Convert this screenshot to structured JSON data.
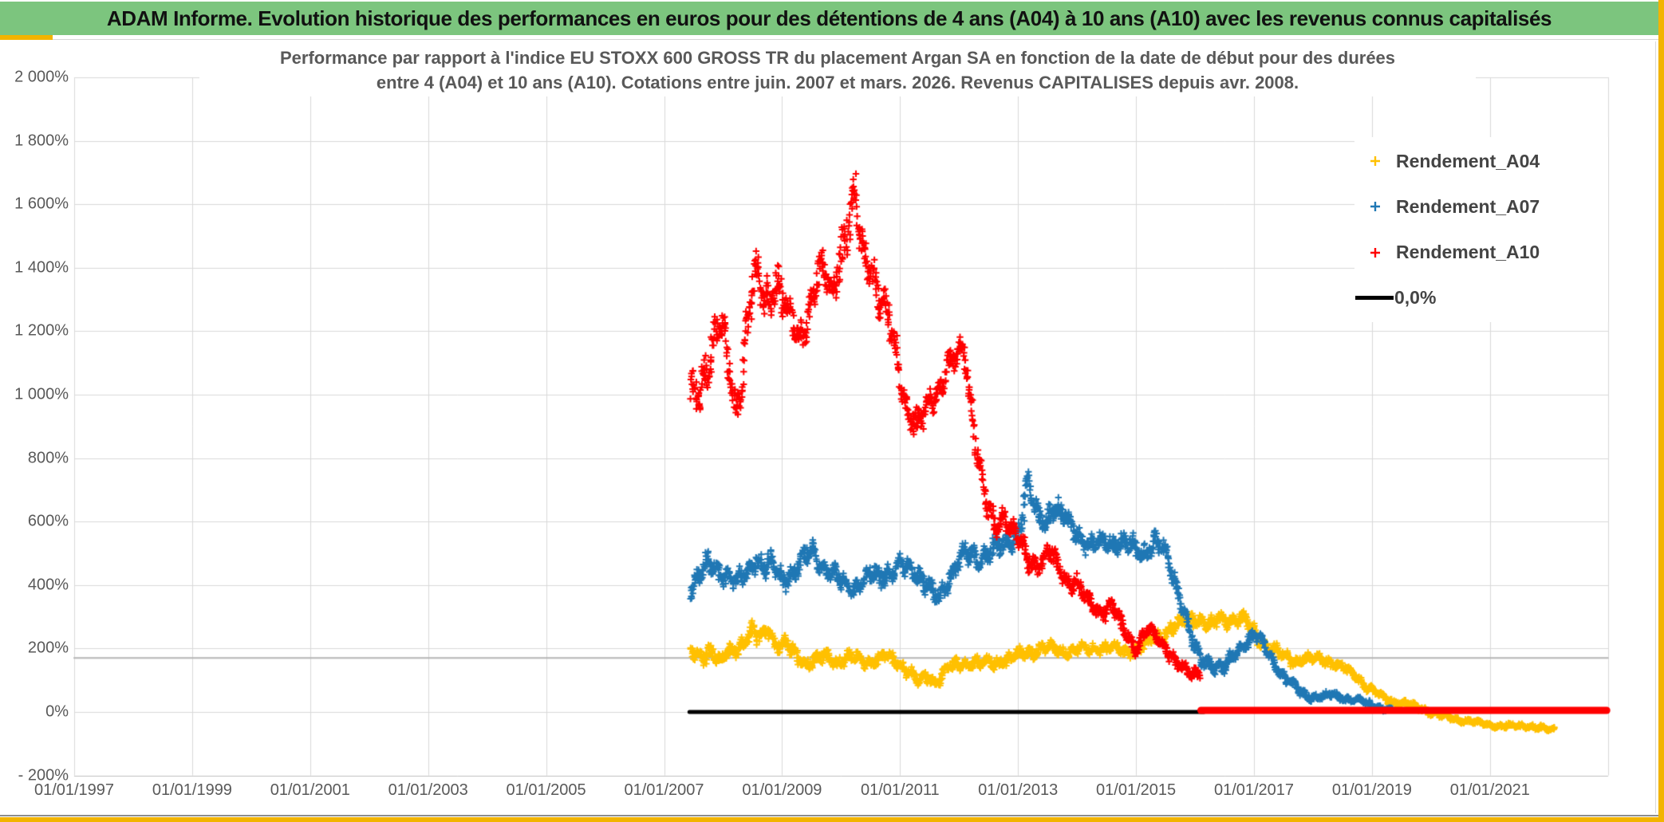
{
  "header": {
    "title": "ADAM Informe. Evolution historique des performances en euros pour des détentions de 4 ans (A04) à 10 ans (A10) avec les revenus connus capitalisés",
    "title_bg": "#7CC57E",
    "accent_gold": "#F2B400"
  },
  "chart_data": {
    "type": "scatter",
    "title_line1": "Performance par rapport à l'indice EU STOXX 600 GROSS TR  du placement Argan SA en fonction de la date de début pour des durées",
    "title_line2": "entre 4 (A04) et 10 ans (A10). Cotations entre juin. 2007 et mars. 2026. Revenus CAPITALISES depuis avr. 2008.",
    "grid": true,
    "legend_position": "right-top",
    "x_axis": {
      "tick_labels": [
        "01/01/1997",
        "01/01/1999",
        "01/01/2001",
        "01/01/2003",
        "01/01/2005",
        "01/01/2007",
        "01/01/2009",
        "01/01/2011",
        "01/01/2013",
        "01/01/2015",
        "01/01/2017",
        "01/01/2019",
        "01/01/2021"
      ],
      "tick_years": [
        1997,
        1999,
        2001,
        2003,
        2005,
        2007,
        2009,
        2011,
        2013,
        2015,
        2017,
        2019,
        2021
      ],
      "range_years": [
        1997,
        2023.0
      ]
    },
    "y_axis": {
      "tick_labels": [
        "2 000%",
        "1 800%",
        "1 600%",
        "1 400%",
        "1 200%",
        "1 000%",
        "800%",
        "600%",
        "400%",
        "200%",
        "0%",
        "- 200%"
      ],
      "tick_values": [
        2000,
        1800,
        1600,
        1400,
        1200,
        1000,
        800,
        600,
        400,
        200,
        0,
        -200
      ],
      "min": -200,
      "max": 2000,
      "unit": "%"
    },
    "legend": [
      {
        "label": "Rendement_A04",
        "color": "#FFC000",
        "marker": "plus"
      },
      {
        "label": "Rendement_A07",
        "color": "#1F77B4",
        "marker": "plus"
      },
      {
        "label": "Rendement_A10",
        "color": "#FF0000",
        "marker": "plus"
      },
      {
        "label": "0,0%",
        "color": "#000000",
        "marker": "line"
      }
    ],
    "reference_lines": [
      {
        "name": "zero-black",
        "value": 0,
        "from_year": 2007.43,
        "to_year": 2016.15,
        "color": "#000000",
        "thickness": 5
      },
      {
        "name": "zero-red-flat",
        "value": 0,
        "from_year": 2016.1,
        "to_year": 2022.98,
        "color": "#FF0000",
        "thickness": 9
      },
      {
        "name": "gray-thin",
        "value": 170,
        "from_year": 1997,
        "to_year": 2023.0,
        "color": "#B5B5B5",
        "thickness": 2
      }
    ],
    "series": [
      {
        "name": "Rendement_A04",
        "color": "#FFC000",
        "marker": "plus",
        "anchors": [
          [
            2007.45,
            185,
            35
          ],
          [
            2007.6,
            178,
            30
          ],
          [
            2007.8,
            195,
            35
          ],
          [
            2007.95,
            150,
            32
          ],
          [
            2008.1,
            190,
            32
          ],
          [
            2008.3,
            215,
            35
          ],
          [
            2008.5,
            240,
            40
          ],
          [
            2008.65,
            235,
            40
          ],
          [
            2008.76,
            270,
            28
          ],
          [
            2008.9,
            210,
            32
          ],
          [
            2009.05,
            212,
            35
          ],
          [
            2009.25,
            178,
            30
          ],
          [
            2009.45,
            150,
            26
          ],
          [
            2009.6,
            168,
            26
          ],
          [
            2009.75,
            175,
            28
          ],
          [
            2009.95,
            158,
            26
          ],
          [
            2010.15,
            172,
            26
          ],
          [
            2010.35,
            165,
            26
          ],
          [
            2010.55,
            160,
            26
          ],
          [
            2010.75,
            172,
            26
          ],
          [
            2010.95,
            162,
            26
          ],
          [
            2011.15,
            130,
            28
          ],
          [
            2011.3,
            90,
            26
          ],
          [
            2011.45,
            112,
            26
          ],
          [
            2011.6,
            95,
            26
          ],
          [
            2011.8,
            135,
            26
          ],
          [
            2012.0,
            152,
            26
          ],
          [
            2012.2,
            158,
            26
          ],
          [
            2012.4,
            152,
            24
          ],
          [
            2012.6,
            155,
            24
          ],
          [
            2012.8,
            165,
            24
          ],
          [
            2013.0,
            178,
            26
          ],
          [
            2013.2,
            190,
            28
          ],
          [
            2013.4,
            200,
            28
          ],
          [
            2013.6,
            198,
            26
          ],
          [
            2013.8,
            188,
            24
          ],
          [
            2014.0,
            198,
            26
          ],
          [
            2014.2,
            196,
            24
          ],
          [
            2014.4,
            205,
            24
          ],
          [
            2014.6,
            200,
            24
          ],
          [
            2014.8,
            192,
            24
          ],
          [
            2015.0,
            196,
            26
          ],
          [
            2015.2,
            215,
            28
          ],
          [
            2015.4,
            242,
            30
          ],
          [
            2015.6,
            262,
            30
          ],
          [
            2015.8,
            278,
            32
          ],
          [
            2015.95,
            298,
            30
          ],
          [
            2016.1,
            288,
            30
          ],
          [
            2016.25,
            268,
            28
          ],
          [
            2016.4,
            292,
            28
          ],
          [
            2016.55,
            288,
            26
          ],
          [
            2016.7,
            296,
            26
          ],
          [
            2016.85,
            288,
            26
          ],
          [
            2016.95,
            268,
            28
          ],
          [
            2017.1,
            228,
            28
          ],
          [
            2017.3,
            196,
            24
          ],
          [
            2017.5,
            176,
            22
          ],
          [
            2017.7,
            162,
            22
          ],
          [
            2017.9,
            166,
            20
          ],
          [
            2018.1,
            168,
            20
          ],
          [
            2018.3,
            158,
            20
          ],
          [
            2018.5,
            140,
            20
          ],
          [
            2018.7,
            118,
            18
          ],
          [
            2018.9,
            82,
            18
          ],
          [
            2019.1,
            56,
            15
          ],
          [
            2019.3,
            36,
            13
          ],
          [
            2019.5,
            28,
            12
          ],
          [
            2019.7,
            20,
            12
          ],
          [
            2019.9,
            8,
            12
          ],
          [
            2020.1,
            -8,
            12
          ],
          [
            2020.3,
            -18,
            11
          ],
          [
            2020.5,
            -26,
            10
          ],
          [
            2020.8,
            -34,
            10
          ],
          [
            2021.0,
            -40,
            10
          ],
          [
            2021.2,
            -46,
            10
          ],
          [
            2021.5,
            -42,
            10
          ],
          [
            2021.8,
            -50,
            10
          ],
          [
            2022.0,
            -55,
            10
          ],
          [
            2022.1,
            -52,
            9
          ]
        ]
      },
      {
        "name": "Rendement_A07",
        "color": "#1F77B4",
        "marker": "plus",
        "anchors": [
          [
            2007.45,
            390,
            42
          ],
          [
            2007.6,
            428,
            48
          ],
          [
            2007.78,
            462,
            52
          ],
          [
            2007.92,
            448,
            42
          ],
          [
            2008.08,
            432,
            45
          ],
          [
            2008.22,
            398,
            40
          ],
          [
            2008.38,
            438,
            42
          ],
          [
            2008.55,
            492,
            52
          ],
          [
            2008.7,
            448,
            45
          ],
          [
            2008.85,
            462,
            45
          ],
          [
            2009.0,
            422,
            42
          ],
          [
            2009.2,
            440,
            42
          ],
          [
            2009.4,
            488,
            45
          ],
          [
            2009.55,
            508,
            42
          ],
          [
            2009.7,
            455,
            42
          ],
          [
            2009.9,
            425,
            40
          ],
          [
            2010.1,
            396,
            40
          ],
          [
            2010.3,
            400,
            40
          ],
          [
            2010.5,
            428,
            40
          ],
          [
            2010.7,
            435,
            40
          ],
          [
            2010.9,
            448,
            42
          ],
          [
            2011.1,
            455,
            45
          ],
          [
            2011.3,
            440,
            42
          ],
          [
            2011.5,
            392,
            40
          ],
          [
            2011.65,
            348,
            36
          ],
          [
            2011.8,
            408,
            45
          ],
          [
            2011.95,
            468,
            45
          ],
          [
            2012.1,
            498,
            48
          ],
          [
            2012.3,
            478,
            45
          ],
          [
            2012.5,
            508,
            45
          ],
          [
            2012.7,
            518,
            45
          ],
          [
            2012.9,
            538,
            45
          ],
          [
            2013.05,
            608,
            58
          ],
          [
            2013.16,
            718,
            55
          ],
          [
            2013.3,
            622,
            48
          ],
          [
            2013.45,
            600,
            45
          ],
          [
            2013.6,
            652,
            48
          ],
          [
            2013.75,
            618,
            45
          ],
          [
            2013.9,
            580,
            42
          ],
          [
            2014.1,
            545,
            40
          ],
          [
            2014.3,
            520,
            40
          ],
          [
            2014.5,
            530,
            40
          ],
          [
            2014.7,
            542,
            40
          ],
          [
            2014.9,
            525,
            40
          ],
          [
            2015.1,
            492,
            45
          ],
          [
            2015.33,
            548,
            40
          ],
          [
            2015.5,
            492,
            45
          ],
          [
            2015.65,
            420,
            42
          ],
          [
            2015.8,
            340,
            40
          ],
          [
            2015.95,
            225,
            40
          ],
          [
            2016.1,
            162,
            32
          ],
          [
            2016.3,
            152,
            28
          ],
          [
            2016.5,
            140,
            28
          ],
          [
            2016.7,
            182,
            28
          ],
          [
            2016.9,
            232,
            28
          ],
          [
            2017.02,
            246,
            28
          ],
          [
            2017.18,
            205,
            28
          ],
          [
            2017.35,
            152,
            26
          ],
          [
            2017.55,
            108,
            24
          ],
          [
            2017.75,
            68,
            20
          ],
          [
            2017.95,
            48,
            16
          ],
          [
            2018.15,
            46,
            15
          ],
          [
            2018.35,
            54,
            15
          ],
          [
            2018.55,
            44,
            14
          ],
          [
            2018.75,
            36,
            13
          ],
          [
            2018.95,
            26,
            12
          ],
          [
            2019.15,
            14,
            10
          ],
          [
            2019.35,
            4,
            8
          ]
        ]
      },
      {
        "name": "Rendement_A10",
        "color": "#FF0000",
        "marker": "plus",
        "anchors": [
          [
            2007.45,
            985,
            75
          ],
          [
            2007.6,
            1015,
            90
          ],
          [
            2007.78,
            1135,
            105
          ],
          [
            2007.95,
            1205,
            90
          ],
          [
            2008.1,
            1085,
            90
          ],
          [
            2008.22,
            945,
            65
          ],
          [
            2008.4,
            1190,
            120
          ],
          [
            2008.55,
            1385,
            65
          ],
          [
            2008.7,
            1295,
            85
          ],
          [
            2008.88,
            1365,
            95
          ],
          [
            2009.05,
            1275,
            70
          ],
          [
            2009.28,
            1185,
            65
          ],
          [
            2009.5,
            1295,
            80
          ],
          [
            2009.68,
            1385,
            70
          ],
          [
            2009.85,
            1335,
            70
          ],
          [
            2010.0,
            1445,
            90
          ],
          [
            2010.15,
            1545,
            120
          ],
          [
            2010.25,
            1605,
            115
          ],
          [
            2010.38,
            1438,
            88
          ],
          [
            2010.5,
            1428,
            70
          ],
          [
            2010.65,
            1288,
            65
          ],
          [
            2010.8,
            1238,
            70
          ],
          [
            2010.95,
            1125,
            70
          ],
          [
            2011.12,
            958,
            70
          ],
          [
            2011.28,
            888,
            55
          ],
          [
            2011.42,
            948,
            60
          ],
          [
            2011.58,
            1008,
            60
          ],
          [
            2011.72,
            1048,
            55
          ],
          [
            2011.88,
            1098,
            60
          ],
          [
            2012.0,
            1128,
            55
          ],
          [
            2012.08,
            1158,
            45
          ],
          [
            2012.2,
            985,
            80
          ],
          [
            2012.32,
            798,
            65
          ],
          [
            2012.45,
            652,
            55
          ],
          [
            2012.6,
            598,
            50
          ],
          [
            2012.75,
            618,
            50
          ],
          [
            2012.9,
            572,
            48
          ],
          [
            2013.05,
            528,
            45
          ],
          [
            2013.2,
            478,
            42
          ],
          [
            2013.35,
            468,
            42
          ],
          [
            2013.55,
            502,
            42
          ],
          [
            2013.7,
            452,
            40
          ],
          [
            2013.85,
            415,
            38
          ],
          [
            2014.0,
            398,
            38
          ],
          [
            2014.2,
            345,
            36
          ],
          [
            2014.4,
            318,
            36
          ],
          [
            2014.6,
            330,
            36
          ],
          [
            2014.8,
            258,
            34
          ],
          [
            2015.0,
            205,
            32
          ],
          [
            2015.2,
            252,
            32
          ],
          [
            2015.35,
            242,
            30
          ],
          [
            2015.5,
            208,
            30
          ],
          [
            2015.65,
            162,
            28
          ],
          [
            2015.8,
            132,
            26
          ],
          [
            2015.95,
            122,
            26
          ],
          [
            2016.08,
            128,
            24
          ]
        ]
      }
    ],
    "colors": {
      "gridline": "#D9D9D9",
      "plot_border": "#C9C9C9",
      "axis_text": "#595959",
      "subtitle_text": "#595959",
      "legend_text": "#444444"
    }
  }
}
